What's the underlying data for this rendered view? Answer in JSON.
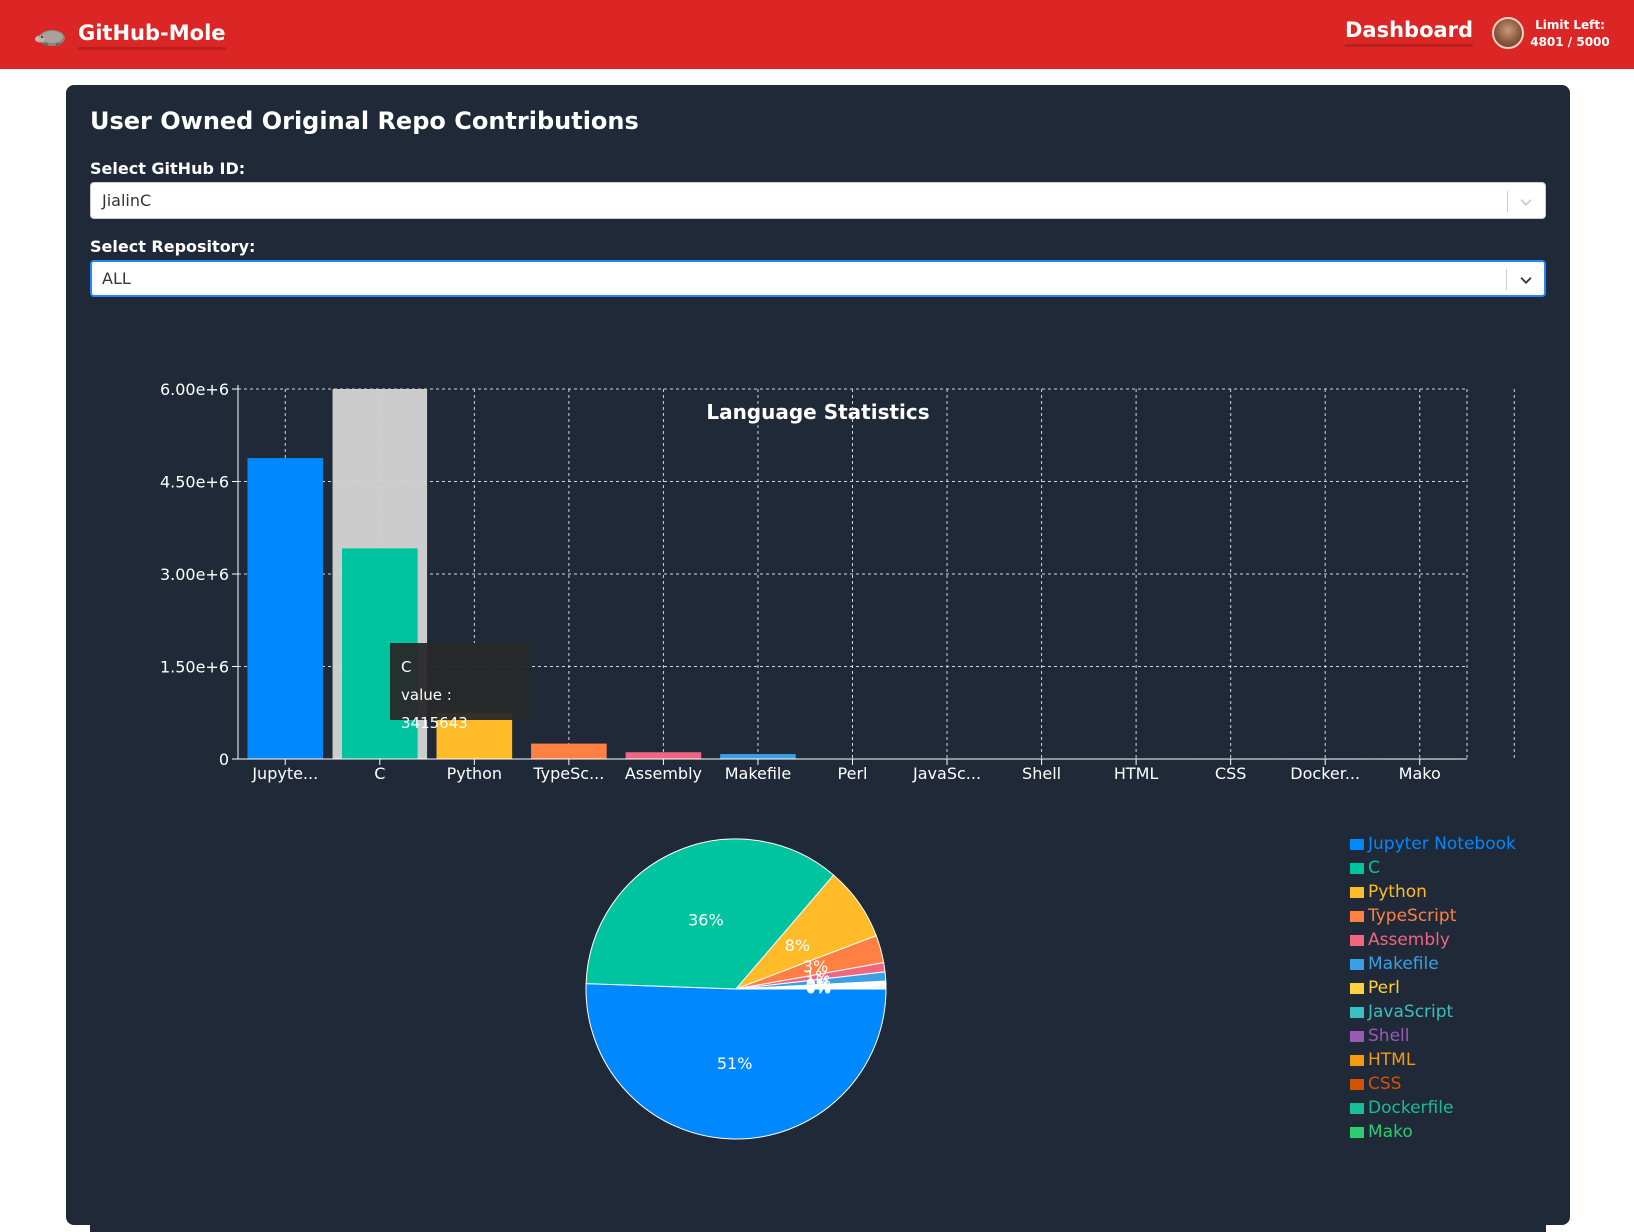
{
  "navbar": {
    "brand": "GitHub-Mole",
    "brand_icon": "mole-icon",
    "dashboard_label": "Dashboard",
    "limit_label": "Limit Left:",
    "limit_value": "4801 / 5000",
    "colors": {
      "background": "#dc2626",
      "text": "#ffffff"
    }
  },
  "card": {
    "title": "User Owned Original Repo Contributions",
    "github_label": "Select GitHub ID:",
    "github_value": "JialinC",
    "repo_label": "Select Repository:",
    "repo_value": "ALL",
    "colors": {
      "background": "#1f2937",
      "focus": "#2684ff"
    }
  },
  "chart_data": [
    {
      "type": "bar",
      "title": "Language Statistics",
      "categories": [
        "Jupyte...",
        "C",
        "Python",
        "TypeSc...",
        "Assembly",
        "Makefile",
        "Perl",
        "JavaSc...",
        "Shell",
        "HTML",
        "CSS",
        "Docker...",
        "Mako"
      ],
      "values": [
        4880000,
        3415643,
        750000,
        250000,
        110000,
        80000,
        8000,
        5000,
        3000,
        2000,
        1000,
        500,
        200
      ],
      "y_ticks": [
        0,
        1500000,
        3000000,
        4500000,
        6000000
      ],
      "y_tick_labels": [
        "0",
        "1.50e+6",
        "3.00e+6",
        "4.50e+6",
        "6.00e+6"
      ],
      "ylim": [
        0,
        6000000
      ],
      "grid": true,
      "highlighted_category": "C",
      "tooltip": {
        "name": "C",
        "label": "value : 3415643"
      }
    },
    {
      "type": "pie",
      "labels": [
        "Jupyter Notebook",
        "C",
        "Python",
        "TypeScript",
        "Assembly",
        "Makefile",
        "Perl",
        "JavaScript",
        "Shell",
        "HTML",
        "CSS",
        "Dockerfile",
        "Mako"
      ],
      "values": [
        51,
        36,
        8,
        3,
        1,
        1,
        0,
        0,
        0,
        0,
        0,
        0,
        0
      ],
      "slice_labels": [
        "51%",
        "36%",
        "8%",
        "3%",
        "1%",
        "1%",
        "0%",
        "0%",
        "0%",
        "0%",
        "0%",
        "0%",
        "0%"
      ],
      "colors": [
        "#0088fe",
        "#00c49f",
        "#ffbb28",
        "#ff8042",
        "#f06680",
        "#3b9fe6",
        "#ffd23f",
        "#3bbfbf",
        "#9b59b6",
        "#f39c12",
        "#d35400",
        "#1abc9c",
        "#2ecc71"
      ],
      "legend_position": "right"
    }
  ]
}
